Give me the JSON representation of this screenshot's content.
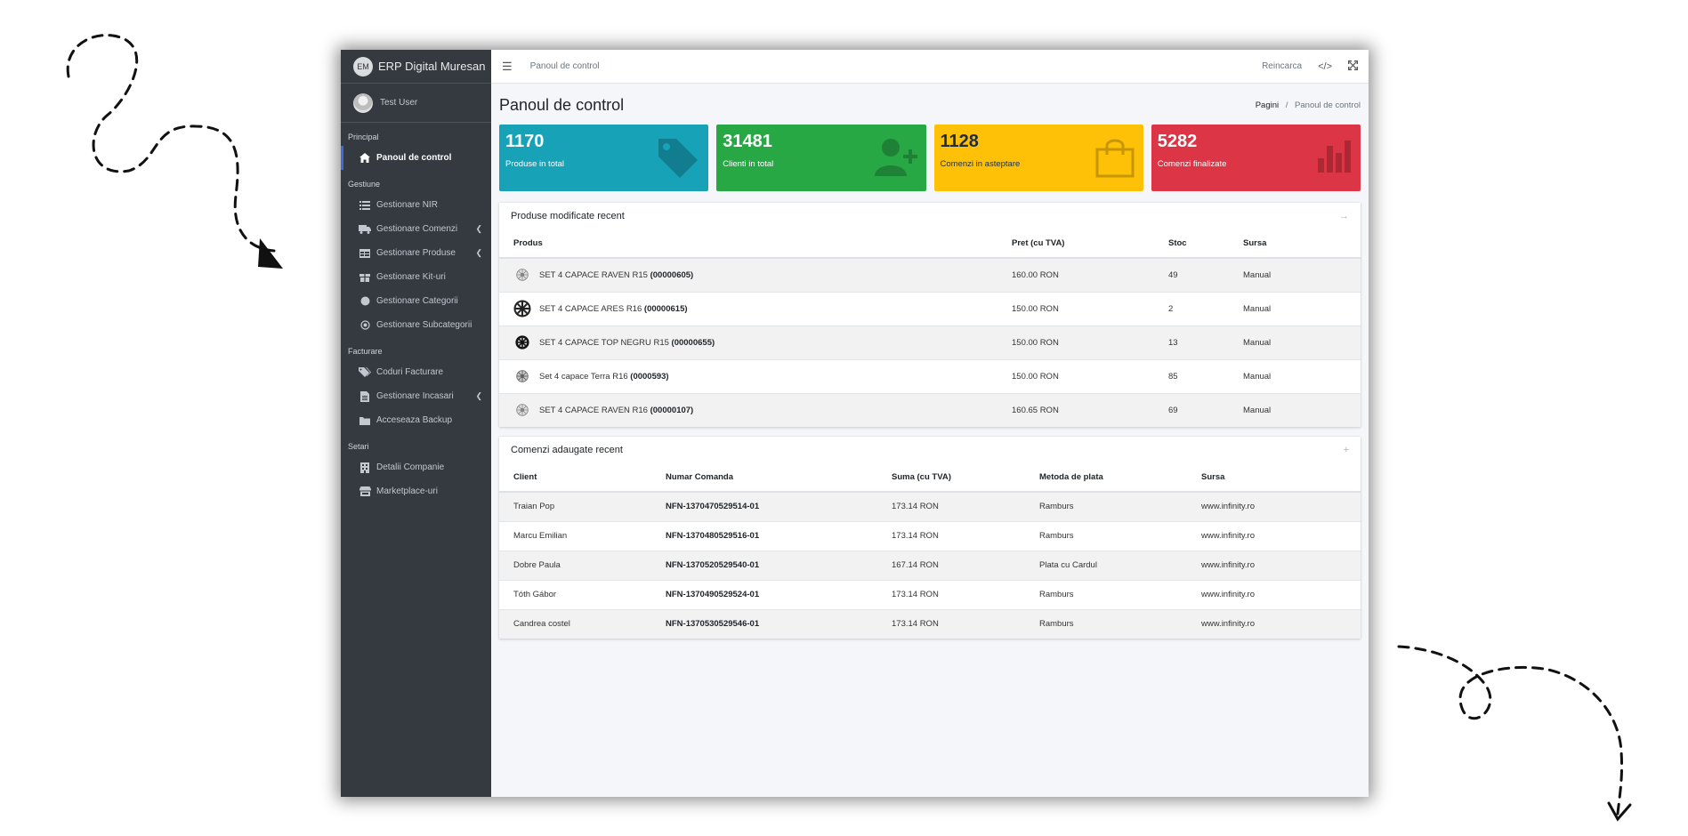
{
  "app": {
    "brand_logo": "EM",
    "brand_name": "ERP Digital Muresan",
    "user_name": "Test User"
  },
  "sidebar": {
    "sections": [
      {
        "header": "Principal",
        "items": [
          {
            "label": "Panoul de control",
            "icon": "home-icon",
            "active": true
          }
        ]
      },
      {
        "header": "Gestiune",
        "items": [
          {
            "label": "Gestionare NIR",
            "icon": "list-icon"
          },
          {
            "label": "Gestionare Comenzi",
            "icon": "truck-icon",
            "has_children": true
          },
          {
            "label": "Gestionare Produse",
            "icon": "table-icon",
            "has_children": true
          },
          {
            "label": "Gestionare Kit-uri",
            "icon": "gift-icon"
          },
          {
            "label": "Gestionare Categorii",
            "icon": "circle-icon"
          },
          {
            "label": "Gestionare Subcategorii",
            "icon": "dot-circle-icon"
          }
        ]
      },
      {
        "header": "Facturare",
        "items": [
          {
            "label": "Coduri Facturare",
            "icon": "tags-icon"
          },
          {
            "label": "Gestionare Incasari",
            "icon": "file-icon",
            "has_children": true
          },
          {
            "label": "Acceseaza Backup",
            "icon": "folder-icon"
          }
        ]
      },
      {
        "header": "Setari",
        "items": [
          {
            "label": "Detalii Companie",
            "icon": "building-icon"
          },
          {
            "label": "Marketplace-uri",
            "icon": "store-icon"
          }
        ]
      }
    ]
  },
  "topbar": {
    "link": "Panoul de control",
    "reload": "Reincarca",
    "code_icon": "</>",
    "expand_icon": "expand-icon"
  },
  "page": {
    "title": "Panoul de control",
    "breadcrumb_root": "Pagini",
    "breadcrumb_sep": "/",
    "breadcrumb_current": "Panoul de control"
  },
  "stats": [
    {
      "value": "1170",
      "label": "Produse in total",
      "color": "#17a2b8",
      "text_color": "#ffffff",
      "icon": "tag-icon"
    },
    {
      "value": "31481",
      "label": "Clienti in total",
      "color": "#28a745",
      "text_color": "#ffffff",
      "icon": "user-plus-icon"
    },
    {
      "value": "1128",
      "label": "Comenzi in asteptare",
      "color": "#ffc107",
      "text_color": "#1f2d3d",
      "icon": "shopping-bag-icon"
    },
    {
      "value": "5282",
      "label": "Comenzi finalizate",
      "color": "#dc3545",
      "text_color": "#ffffff",
      "icon": "bar-chart-icon"
    }
  ],
  "products_card": {
    "title": "Produse modificate recent",
    "tool": "→",
    "columns": [
      "Produs",
      "Pret (cu TVA)",
      "Stoc",
      "Sursa"
    ],
    "rows": [
      {
        "name": "SET 4 CAPACE RAVEN R15",
        "code": "(00000605)",
        "price": "160.00 RON",
        "stock": "49",
        "source": "Manual"
      },
      {
        "name": "SET 4 CAPACE ARES R16",
        "code": "(00000615)",
        "price": "150.00 RON",
        "stock": "2",
        "source": "Manual"
      },
      {
        "name": "SET 4 CAPACE TOP NEGRU R15",
        "code": "(00000655)",
        "price": "150.00 RON",
        "stock": "13",
        "source": "Manual"
      },
      {
        "name": "Set 4 capace Terra R16",
        "code": "(0000593)",
        "price": "150.00 RON",
        "stock": "85",
        "source": "Manual"
      },
      {
        "name": "SET 4 CAPACE RAVEN R16",
        "code": "(00000107)",
        "price": "160.65 RON",
        "stock": "69",
        "source": "Manual"
      }
    ]
  },
  "orders_card": {
    "title": "Comenzi adaugate recent",
    "tool": "+",
    "columns": [
      "Client",
      "Numar Comanda",
      "Suma (cu TVA)",
      "Metoda de plata",
      "Sursa"
    ],
    "rows": [
      {
        "client": "Traian Pop",
        "number": "NFN-1370470529514-01",
        "sum": "173.14 RON",
        "payment": "Ramburs",
        "source": "www.infinity.ro"
      },
      {
        "client": "Marcu Emilian",
        "number": "NFN-1370480529516-01",
        "sum": "173.14 RON",
        "payment": "Ramburs",
        "source": "www.infinity.ro"
      },
      {
        "client": "Dobre Paula",
        "number": "NFN-1370520529540-01",
        "sum": "167.14 RON",
        "payment": "Plata cu Cardul",
        "source": "www.infinity.ro"
      },
      {
        "client": "Tóth Gábor",
        "number": "NFN-1370490529524-01",
        "sum": "173.14 RON",
        "payment": "Ramburs",
        "source": "www.infinity.ro"
      },
      {
        "client": "Candrea costel",
        "number": "NFN-1370530529546-01",
        "sum": "173.14 RON",
        "payment": "Ramburs",
        "source": "www.infinity.ro"
      }
    ]
  }
}
